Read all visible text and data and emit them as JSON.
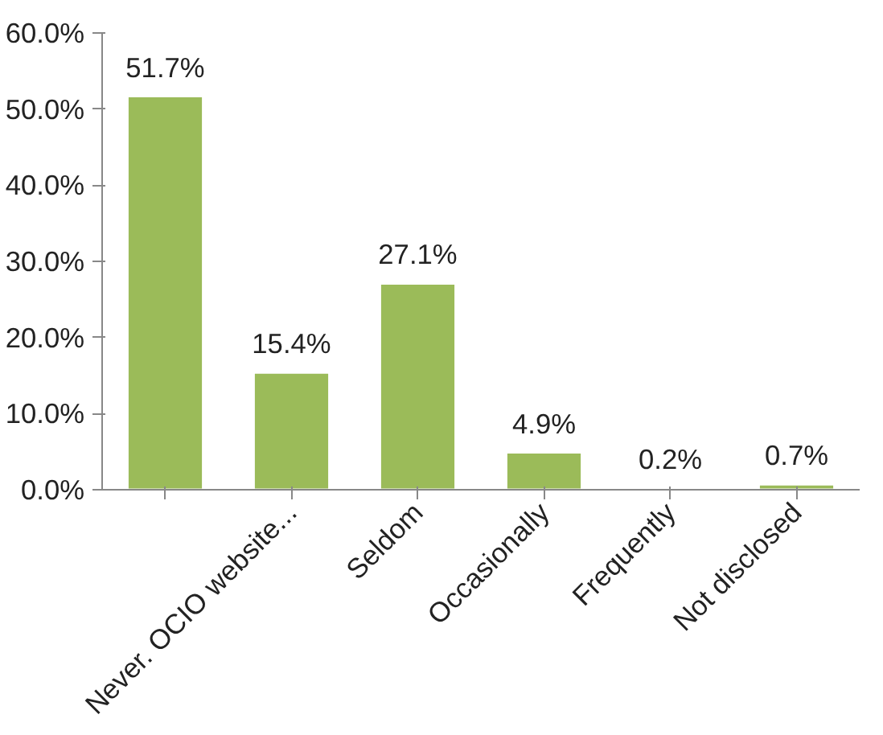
{
  "chart_data": {
    "type": "bar",
    "categories": [
      null,
      "Never. OCIO website...",
      "Seldom",
      "Occasionally",
      "Frequently",
      "Not disclosed"
    ],
    "values": [
      51.7,
      15.4,
      27.1,
      4.9,
      0.2,
      0.7
    ],
    "value_labels": [
      "51.7%",
      "15.4%",
      "27.1%",
      "4.9%",
      "0.2%",
      "0.7%"
    ],
    "color": "#9bbb59",
    "ylim": [
      0,
      60
    ],
    "yticks": [
      {
        "value": 0,
        "label": "0.0%"
      },
      {
        "value": 10,
        "label": "10.0%"
      },
      {
        "value": 20,
        "label": "20.0%"
      },
      {
        "value": 30,
        "label": "30.0%"
      },
      {
        "value": 40,
        "label": "40.0%"
      },
      {
        "value": 50,
        "label": "50.0%"
      },
      {
        "value": 60,
        "label": "60.0%"
      }
    ],
    "grid": false
  }
}
